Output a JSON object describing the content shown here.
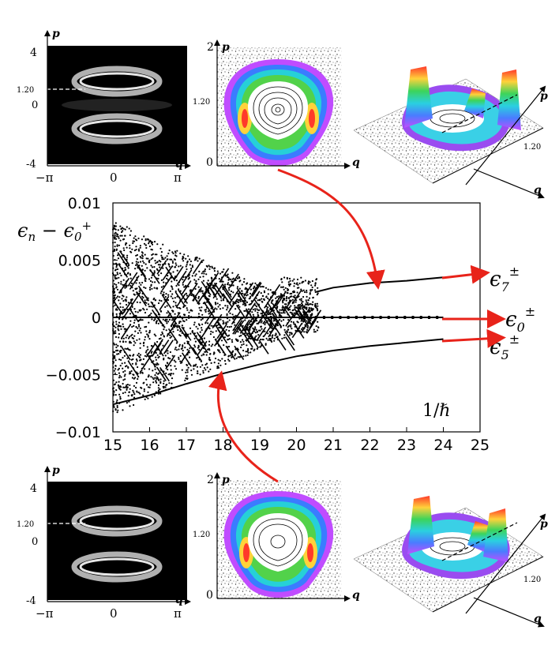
{
  "figure": {
    "panels": [
      {
        "name": "top",
        "husimi": {
          "p_label": "p",
          "q_label": "q",
          "y_ticks": [
            "4",
            "1.20",
            "0",
            "-4"
          ],
          "x_ticks": [
            "−π",
            "0",
            "π"
          ]
        },
        "contour": {
          "p_label": "p",
          "q_label": "q",
          "y_ticks": [
            "2",
            "1.20",
            "0"
          ]
        },
        "surface": {
          "p_label": "p",
          "q_label": "q",
          "tick": "1.20"
        }
      },
      {
        "name": "bottom",
        "husimi": {
          "p_label": "p",
          "q_label": "q",
          "y_ticks": [
            "4",
            "1.20",
            "0",
            "-4"
          ],
          "x_ticks": [
            "−π",
            "0",
            "π"
          ]
        },
        "contour": {
          "p_label": "p",
          "q_label": "q",
          "y_ticks": [
            "2",
            "1.20",
            "0"
          ]
        },
        "surface": {
          "p_label": "p",
          "q_label": "q",
          "tick": "1.20"
        }
      }
    ],
    "arrow_color": "#e8231a"
  },
  "chart_data": {
    "type": "scatter",
    "ylabel": "ϵn − ϵ0+",
    "x_annotation": "1/ℏ",
    "xlim": [
      15,
      25
    ],
    "ylim": [
      -0.01,
      0.01
    ],
    "x_ticks": [
      "15",
      "16",
      "17",
      "18",
      "19",
      "20",
      "21",
      "22",
      "23",
      "24",
      "25"
    ],
    "y_ticks": [
      "0.01",
      "0.005",
      "0",
      "−0.005",
      "−0.01"
    ],
    "y_tick_values": [
      0.01,
      0.005,
      0,
      -0.005,
      -0.01
    ],
    "grid": false,
    "series": [
      {
        "label": "ϵ7±",
        "x": [
          20.5,
          21,
          22,
          23,
          24
        ],
        "y": [
          0.0022,
          0.0026,
          0.003,
          0.0032,
          0.0035
        ]
      },
      {
        "label": "ϵ0±",
        "x": [
          15,
          18,
          21,
          24
        ],
        "y": [
          0,
          0,
          0,
          0
        ]
      },
      {
        "label": "ϵ5±",
        "x": [
          15,
          16,
          17,
          18,
          19,
          20,
          21,
          22,
          23,
          24
        ],
        "y": [
          -0.0076,
          -0.0068,
          -0.0058,
          -0.0049,
          -0.0041,
          -0.0034,
          -0.0029,
          -0.0025,
          -0.0022,
          -0.0019
        ]
      }
    ],
    "scatter_cloud_count": 2200
  }
}
